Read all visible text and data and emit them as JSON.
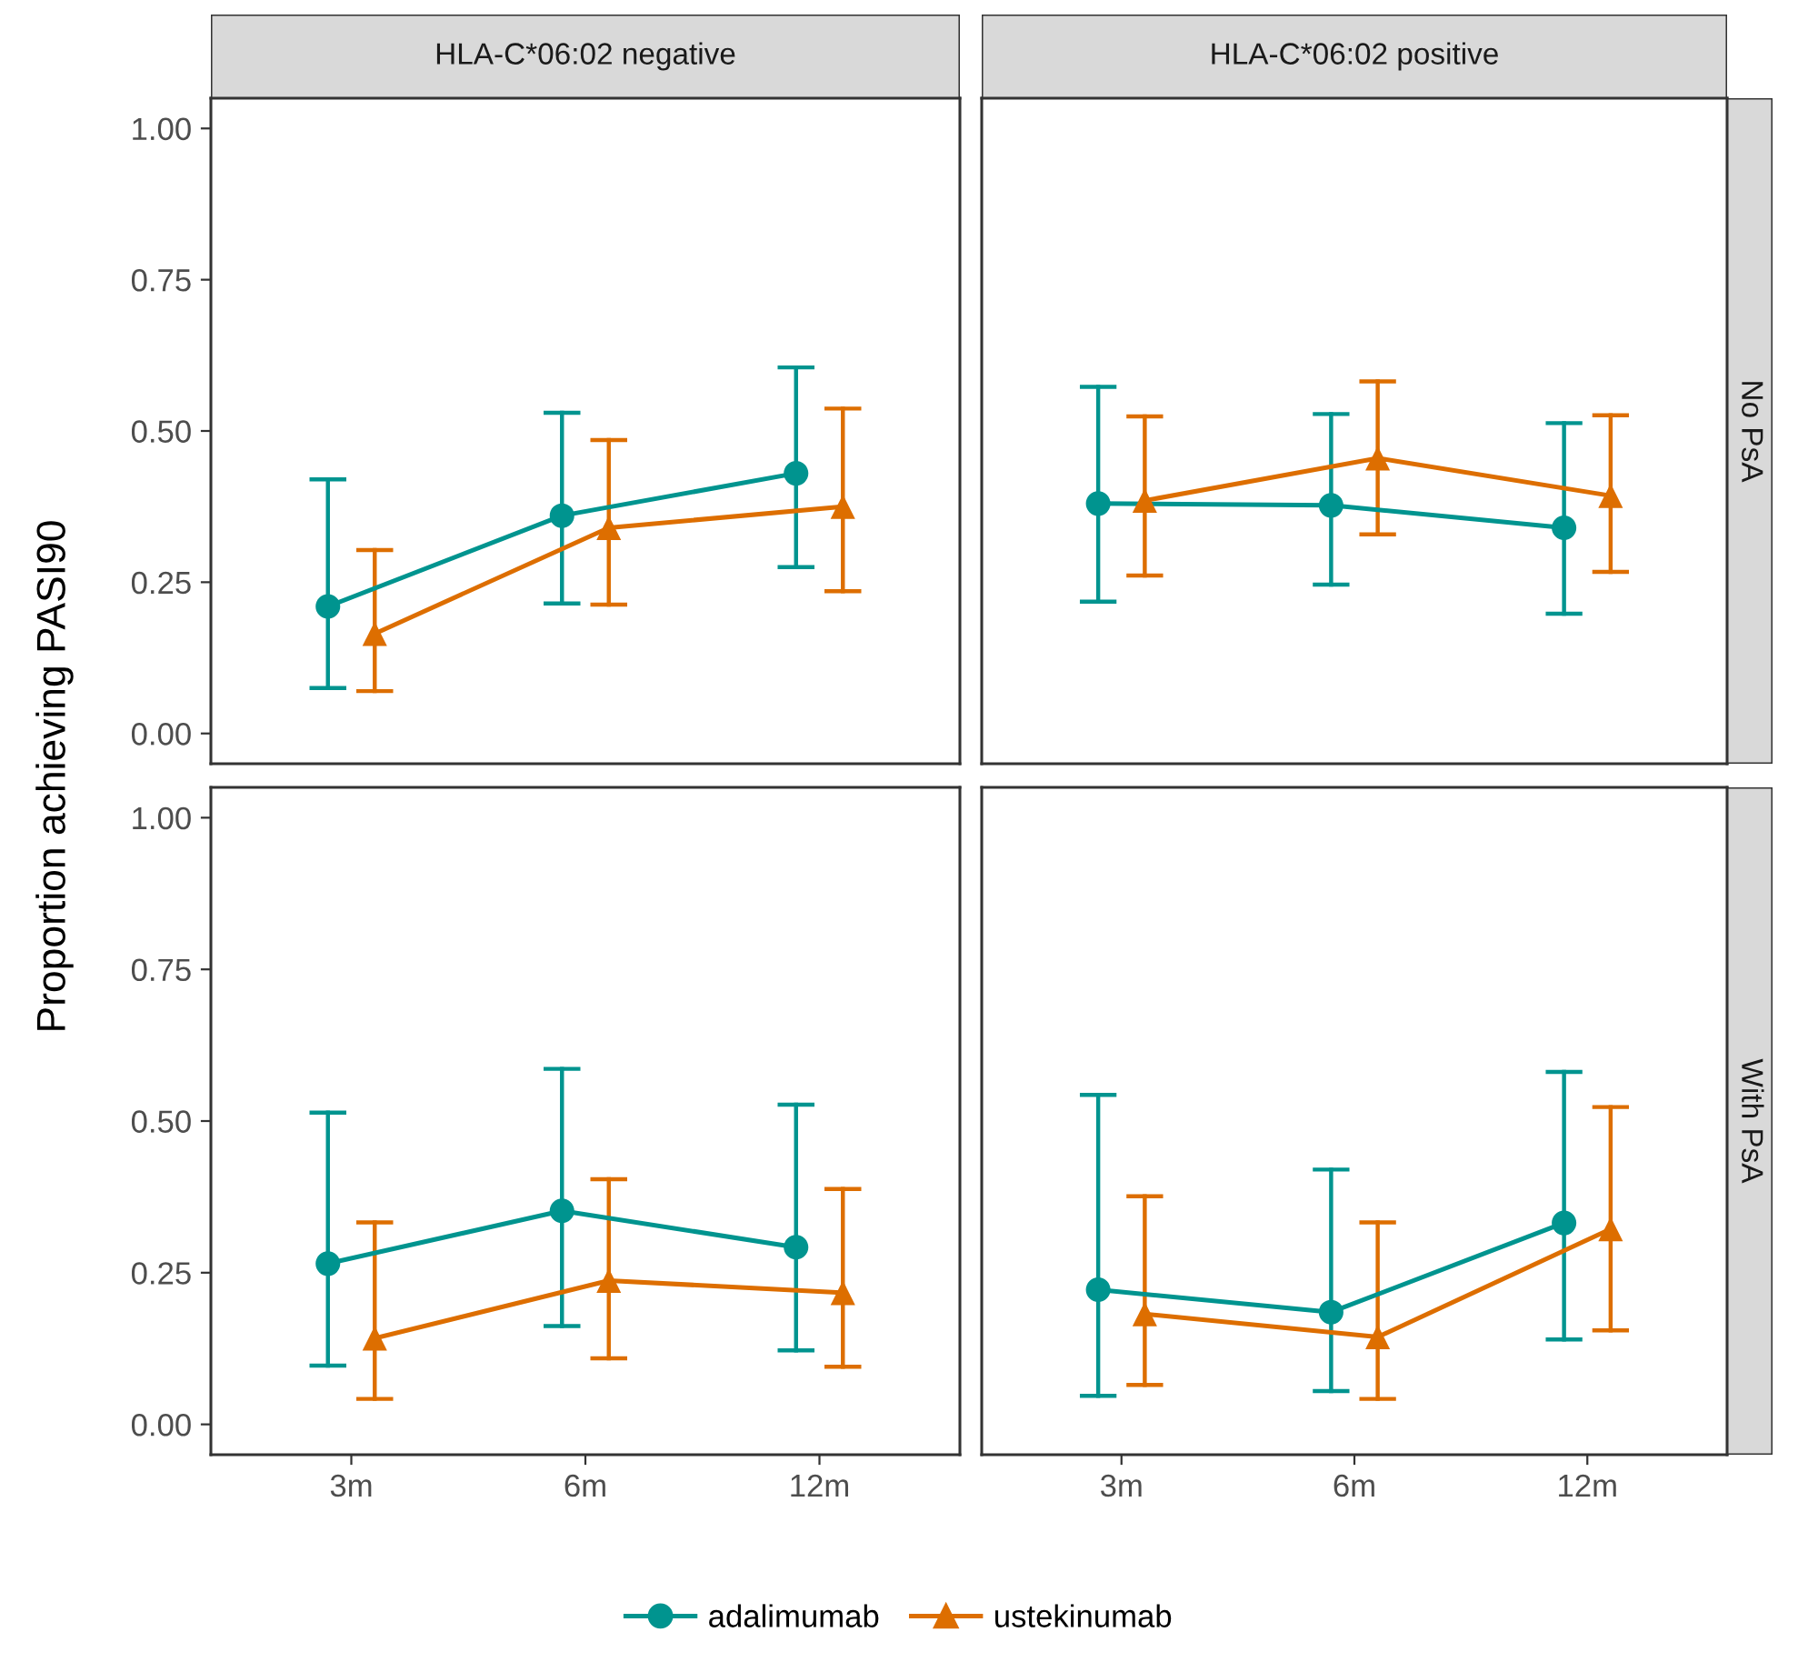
{
  "chart_data": [
    {
      "type": "line",
      "title": "HLA-C*06:02 negative",
      "ylabel": "Proportion achieving PASI90",
      "categories": [
        "3m",
        "6m",
        "12m"
      ],
      "ylim": [
        -0.05,
        1.05
      ],
      "yticks": [
        {
          "value": 0,
          "label": "0.00"
        },
        {
          "value": 0.25,
          "label": "0.25"
        },
        {
          "value": 0.5,
          "label": "0.50"
        },
        {
          "value": 0.75,
          "label": "0.75"
        },
        {
          "value": 1,
          "label": "1.00"
        }
      ],
      "tick_labels": "y",
      "grid": false,
      "legend": "bottom",
      "series": [
        {
          "name": "adalimumab",
          "color": "#00948f",
          "marker": "circle",
          "values": [
            0.21,
            0.36,
            0.43
          ],
          "errors": [
            [
              0.075,
              0.42
            ],
            [
              0.215,
              0.53
            ],
            [
              0.275,
              0.605
            ]
          ]
        },
        {
          "name": "ustekinumab",
          "color": "#dd6e00",
          "marker": "triangle",
          "values": [
            0.165,
            0.34,
            0.375
          ],
          "errors": [
            [
              0.07,
              0.303
            ],
            [
              0.213,
              0.485
            ],
            [
              0.235,
              0.537
            ]
          ]
        }
      ]
    },
    {
      "type": "line",
      "title": "HLA-C*06:02 positive",
      "y2label": "No PsA",
      "categories": [
        "3m",
        "6m",
        "12m"
      ],
      "ylim": [
        -0.05,
        1.05
      ],
      "yticks": [
        {
          "value": 0,
          "label": "0.00"
        },
        {
          "value": 0.25,
          "label": "0.25"
        },
        {
          "value": 0.5,
          "label": "0.50"
        },
        {
          "value": 0.75,
          "label": "0.75"
        },
        {
          "value": 1,
          "label": "1.00"
        }
      ],
      "tick_labels": false,
      "grid": false,
      "series": [
        {
          "name": "adalimumab",
          "color": "#00948f",
          "marker": "circle",
          "values": [
            0.38,
            0.377,
            0.34
          ],
          "errors": [
            [
              0.218,
              0.573
            ],
            [
              0.246,
              0.528
            ],
            [
              0.198,
              0.513
            ]
          ]
        },
        {
          "name": "ustekinumab",
          "color": "#dd6e00",
          "marker": "triangle",
          "values": [
            0.385,
            0.455,
            0.393
          ],
          "errors": [
            [
              0.261,
              0.524
            ],
            [
              0.329,
              0.582
            ],
            [
              0.267,
              0.526
            ]
          ]
        }
      ]
    },
    {
      "type": "line",
      "categories": [
        "3m",
        "6m",
        "12m"
      ],
      "ylim": [
        -0.05,
        1.05
      ],
      "yticks": [
        {
          "value": 0,
          "label": "0.00"
        },
        {
          "value": 0.25,
          "label": "0.25"
        },
        {
          "value": 0.5,
          "label": "0.50"
        },
        {
          "value": 0.75,
          "label": "0.75"
        },
        {
          "value": 1,
          "label": "1.00"
        }
      ],
      "grid": false,
      "series": [
        {
          "name": "adalimumab",
          "color": "#00948f",
          "marker": "circle",
          "values": [
            0.265,
            0.352,
            0.292
          ],
          "errors": [
            [
              0.097,
              0.514
            ],
            [
              0.162,
              0.586
            ],
            [
              0.122,
              0.527
            ]
          ]
        },
        {
          "name": "ustekinumab",
          "color": "#dd6e00",
          "marker": "triangle",
          "values": [
            0.142,
            0.237,
            0.217
          ],
          "errors": [
            [
              0.042,
              0.333
            ],
            [
              0.109,
              0.404
            ],
            [
              0.095,
              0.388
            ]
          ]
        }
      ]
    },
    {
      "type": "line",
      "y2label": "With PsA",
      "categories": [
        "3m",
        "6m",
        "12m"
      ],
      "ylim": [
        -0.05,
        1.05
      ],
      "yticks": [
        {
          "value": 0,
          "label": "0.00"
        },
        {
          "value": 0.25,
          "label": "0.25"
        },
        {
          "value": 0.5,
          "label": "0.50"
        },
        {
          "value": 0.75,
          "label": "0.75"
        },
        {
          "value": 1,
          "label": "1.00"
        }
      ],
      "tick_labels": "x",
      "grid": false,
      "series": [
        {
          "name": "adalimumab",
          "color": "#00948f",
          "marker": "circle",
          "values": [
            0.222,
            0.185,
            0.332
          ],
          "errors": [
            [
              0.047,
              0.543
            ],
            [
              0.055,
              0.42
            ],
            [
              0.14,
              0.581
            ]
          ]
        },
        {
          "name": "ustekinumab",
          "color": "#dd6e00",
          "marker": "triangle",
          "values": [
            0.182,
            0.144,
            0.322
          ],
          "errors": [
            [
              0.065,
              0.376
            ],
            [
              0.042,
              0.333
            ],
            [
              0.155,
              0.523
            ]
          ]
        }
      ]
    }
  ]
}
